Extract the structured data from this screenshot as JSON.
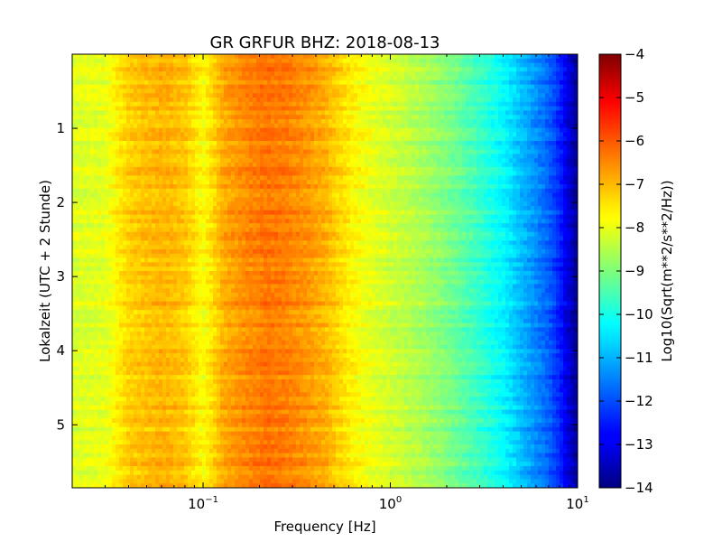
{
  "chart_data": {
    "type": "heatmap",
    "title": "GR GRFUR BHZ: 2018-08-13",
    "xlabel": "Frequency [Hz]",
    "ylabel": "Lokalzeit (UTC + 2 Stunde)",
    "x_scale": "log",
    "xlim": [
      0.02,
      10
    ],
    "ylim": [
      5.85,
      0.0
    ],
    "x_ticks": [
      {
        "value": 0.1,
        "base": "10",
        "exp": "−1"
      },
      {
        "value": 1,
        "base": "10",
        "exp": "0"
      },
      {
        "value": 10,
        "base": "10",
        "exp": "1"
      }
    ],
    "y_ticks": [
      1,
      2,
      3,
      4,
      5
    ],
    "colorbar": {
      "label": "Log10(Sqrt(m**2/s**2/Hz))",
      "range": [
        -14,
        -4
      ],
      "ticks": [
        -4,
        -5,
        -6,
        -7,
        -8,
        -9,
        -10,
        -11,
        -12,
        -13,
        -14
      ],
      "colormap": "jet"
    },
    "spectrum_profile": {
      "frequency_hz": [
        0.02,
        0.03,
        0.04,
        0.06,
        0.08,
        0.1,
        0.13,
        0.17,
        0.22,
        0.28,
        0.35,
        0.45,
        0.6,
        0.8,
        1.0,
        1.5,
        2.0,
        3.0,
        4.0,
        5.0,
        6.0,
        7.0,
        8.0,
        9.0,
        10.0
      ],
      "log10_amplitude": [
        -8.1,
        -8.0,
        -7.3,
        -7.0,
        -7.2,
        -7.8,
        -6.9,
        -6.6,
        -6.4,
        -6.5,
        -6.7,
        -7.0,
        -7.6,
        -8.0,
        -8.2,
        -8.6,
        -9.0,
        -9.7,
        -10.3,
        -10.9,
        -11.4,
        -11.8,
        -12.4,
        -13.2,
        -13.8
      ]
    }
  }
}
